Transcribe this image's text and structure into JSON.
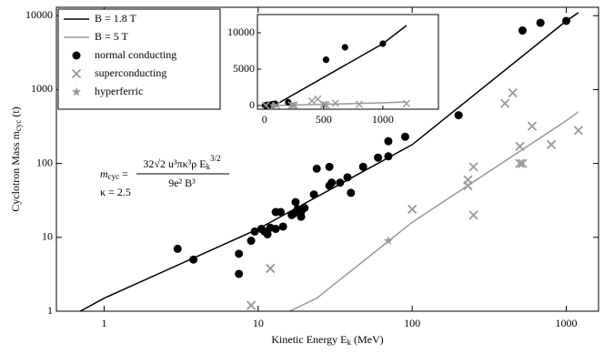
{
  "chart_data": {
    "type": "scatter",
    "xscale": "log",
    "yscale": "log",
    "xlim": [
      0.49,
      1620
    ],
    "ylim": [
      1,
      13000
    ],
    "xticks": [
      1,
      10,
      100,
      1000
    ],
    "yticks": [
      1,
      10,
      100,
      1000,
      10000
    ],
    "xlabel": {
      "main": "Kinetic Energy E",
      "sub": "k",
      "unit": " (MeV)"
    },
    "ylabel": {
      "main": "Cyclotron Mass m",
      "sub": "cyc",
      "unit": " (t)"
    },
    "legend": "upper left",
    "series": [
      {
        "name": "B = 1.8 T",
        "kind": "line",
        "color": "#000000",
        "x": [
          0.7,
          1,
          10,
          100,
          1000,
          1200
        ],
        "values": [
          1,
          1.5,
          13,
          180,
          8500,
          11000
        ]
      },
      {
        "name": "B = 5 T",
        "kind": "line",
        "color": "#999999",
        "x": [
          16,
          24,
          100,
          1000,
          1200
        ],
        "values": [
          1,
          1.5,
          16,
          380,
          500
        ]
      },
      {
        "name": "normal conducting",
        "kind": "marker",
        "marker": "circle",
        "color": "#000000",
        "x": [
          3,
          3.8,
          7.5,
          7.5,
          9,
          9.5,
          10.5,
          11,
          11.5,
          12,
          13,
          13,
          14,
          14.5,
          16.5,
          17,
          17.5,
          18,
          19,
          19,
          20,
          23,
          24,
          29,
          29,
          30,
          34,
          38,
          40,
          48,
          60,
          70,
          70,
          90,
          200,
          520,
          680,
          1000
        ],
        "values": [
          7,
          5,
          6,
          3.2,
          9,
          12,
          13,
          12,
          11,
          13.5,
          22,
          13,
          22,
          14,
          20,
          21,
          30,
          24,
          19,
          22,
          25,
          38,
          85,
          50,
          90,
          55,
          55,
          65,
          40,
          90,
          120,
          125,
          200,
          230,
          450,
          6300,
          8000,
          8500
        ]
      },
      {
        "name": "superconducting",
        "kind": "marker",
        "marker": "x",
        "color": "#999999",
        "x": [
          9,
          12,
          100,
          230,
          230,
          250,
          250,
          400,
          450,
          500,
          500,
          520,
          600,
          800,
          1200
        ],
        "values": [
          1.2,
          3.8,
          24,
          60,
          50,
          90,
          20,
          650,
          900,
          100,
          170,
          100,
          320,
          180,
          280
        ]
      },
      {
        "name": "hyperferric",
        "kind": "marker",
        "marker": "star",
        "color": "#999999",
        "x": [
          70
        ],
        "values": [
          9
        ]
      }
    ],
    "formula": {
      "lhs": "m",
      "lhs_sub": "cyc",
      "eq": " =",
      "numerator": "32√2 u³πκ³ρ E",
      "num_sub": "k",
      "num_sup": "3/2",
      "denominator": "9e² B³",
      "kappa": "κ = 2.5"
    },
    "inset": {
      "xlim": [
        -60,
        1470
      ],
      "ylim": [
        -500,
        12500
      ],
      "xticks": [
        0,
        500,
        1000
      ],
      "yticks": [
        0,
        5000,
        10000
      ]
    }
  }
}
